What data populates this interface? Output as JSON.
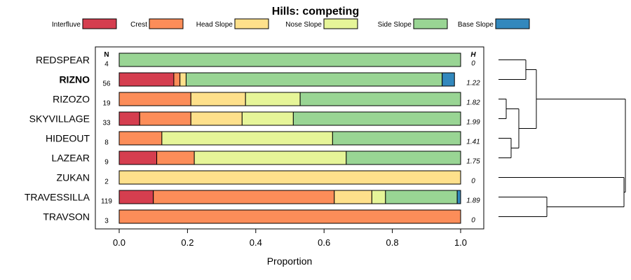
{
  "chart_data": {
    "type": "bar",
    "orientation": "horizontal",
    "stacked": true,
    "title": "Hills: competing",
    "xlabel": "Proportion",
    "ylabel": "",
    "xlim": [
      0,
      1
    ],
    "x_ticks": [
      "0.0",
      "0.2",
      "0.4",
      "0.6",
      "0.8",
      "1.0"
    ],
    "n_header": "N",
    "h_header": "H",
    "legend_position": "top",
    "series": [
      {
        "name": "Interfluve",
        "color": "#d53e4f"
      },
      {
        "name": "Crest",
        "color": "#fc8d59"
      },
      {
        "name": "Head Slope",
        "color": "#fee08b"
      },
      {
        "name": "Nose Slope",
        "color": "#e6f598"
      },
      {
        "name": "Side Slope",
        "color": "#99d594"
      },
      {
        "name": "Base Slope",
        "color": "#3288bd"
      }
    ],
    "rows": [
      {
        "label": "REDSPEAR",
        "bold": false,
        "n": "4",
        "h": "0",
        "values": [
          0,
          0,
          0,
          0,
          1.0,
          0
        ]
      },
      {
        "label": "RIZNO",
        "bold": true,
        "n": "56",
        "h": "1.22",
        "values": [
          0.16,
          0.018,
          0.018,
          0,
          0.75,
          0.036
        ]
      },
      {
        "label": "RIZOZO",
        "bold": false,
        "n": "19",
        "h": "1.82",
        "values": [
          0,
          0.21,
          0.16,
          0.16,
          0.47,
          0
        ]
      },
      {
        "label": "SKYVILLAGE",
        "bold": false,
        "n": "33",
        "h": "1.99",
        "values": [
          0.06,
          0.15,
          0.15,
          0.15,
          0.49,
          0
        ]
      },
      {
        "label": "HIDEOUT",
        "bold": false,
        "n": "8",
        "h": "1.41",
        "values": [
          0,
          0.125,
          0,
          0.5,
          0.375,
          0
        ]
      },
      {
        "label": "LAZEAR",
        "bold": false,
        "n": "9",
        "h": "1.75",
        "values": [
          0.11,
          0.11,
          0,
          0.445,
          0.335,
          0
        ]
      },
      {
        "label": "ZUKAN",
        "bold": false,
        "n": "2",
        "h": "0",
        "values": [
          0,
          0,
          1.0,
          0,
          0,
          0
        ]
      },
      {
        "label": "TRAVESSILLA",
        "bold": false,
        "n": "119",
        "h": "1.89",
        "values": [
          0.1,
          0.53,
          0.11,
          0.04,
          0.21,
          0.01
        ]
      },
      {
        "label": "TRAVSON",
        "bold": false,
        "n": "3",
        "h": "0",
        "values": [
          0,
          1.0,
          0,
          0,
          0,
          0
        ]
      }
    ]
  }
}
